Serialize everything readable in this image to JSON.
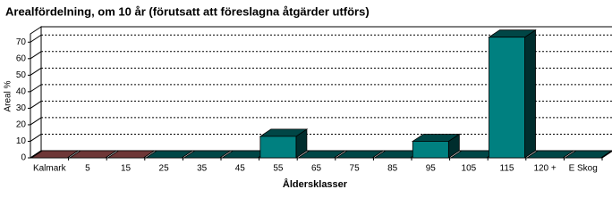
{
  "chart_data": {
    "type": "bar3d",
    "title": "Arealfördelning, om 10 år (förutsatt att föreslagna åtgärder utförs)",
    "x_label": "Åldersklasser",
    "y_label": "Areal %",
    "categories": [
      "Kalmark",
      "5",
      "15",
      "25",
      "35",
      "45",
      "55",
      "65",
      "75",
      "85",
      "95",
      "105",
      "115",
      "120 +",
      "E Skog"
    ],
    "values": [
      0,
      0,
      0,
      0,
      0,
      0,
      13,
      0,
      0,
      0,
      10,
      0,
      73,
      0,
      0
    ],
    "colors": [
      "#c86464",
      "#c86464",
      "#c86464",
      "#008080",
      "#008080",
      "#008080",
      "#008080",
      "#008080",
      "#008080",
      "#008080",
      "#008080",
      "#008080",
      "#008080",
      "#008080",
      "#008080"
    ],
    "ylim": [
      0,
      75
    ],
    "yticks": [
      0,
      10,
      20,
      30,
      40,
      50,
      60,
      70
    ],
    "grid": true
  }
}
